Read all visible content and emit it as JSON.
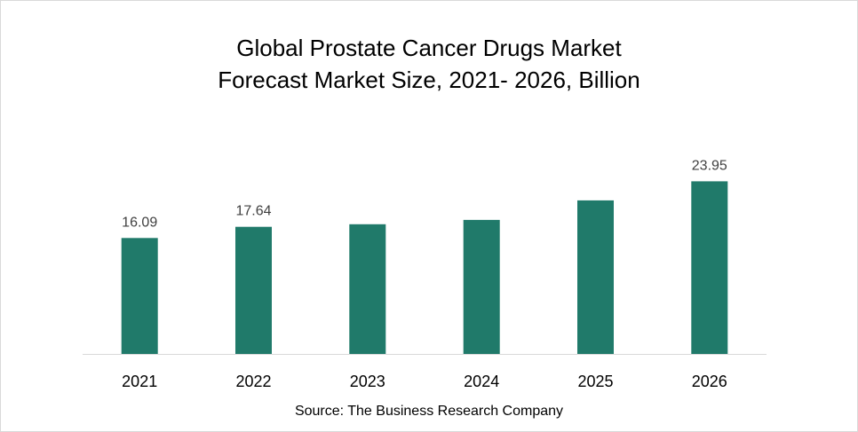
{
  "chart_data": {
    "type": "bar",
    "title_lines": [
      "Global Prostate Cancer Drugs Market",
      "Forecast Market Size, 2021- 2026, Billion"
    ],
    "categories": [
      "2021",
      "2022",
      "2023",
      "2024",
      "2025",
      "2026"
    ],
    "values": [
      16.09,
      17.64,
      18.0,
      18.6,
      21.3,
      23.95
    ],
    "data_labels": [
      "16.09",
      "17.64",
      "",
      "",
      "",
      "23.95"
    ],
    "xlabel": "",
    "ylabel": "",
    "ylim": [
      0,
      24.5
    ],
    "grid": false,
    "legend": "none",
    "bar_color": "#207a6a",
    "source": "Source: The Business Research Company"
  }
}
